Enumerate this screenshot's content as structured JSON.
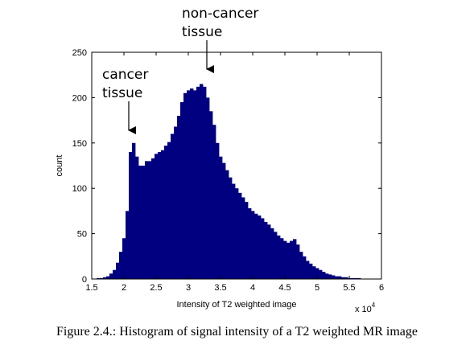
{
  "chart_data": {
    "type": "bar",
    "style": "histogram",
    "bar_color": "#000080",
    "xlabel": "Intensity of T2 weighted image",
    "ylabel": "count",
    "x_exponent_label": "x 10",
    "x_exponent_power": "4",
    "xlim": [
      1.5,
      6.0
    ],
    "ylim": [
      0,
      250
    ],
    "x_ticks": [
      "1.5",
      "2",
      "2.5",
      "3",
      "3.5",
      "4",
      "4.5",
      "5",
      "5.5",
      "6"
    ],
    "y_ticks": [
      "0",
      "50",
      "100",
      "150",
      "200",
      "250"
    ],
    "x": [
      1.55,
      1.6,
      1.65,
      1.7,
      1.75,
      1.8,
      1.85,
      1.9,
      1.95,
      2.0,
      2.05,
      2.1,
      2.15,
      2.2,
      2.25,
      2.3,
      2.35,
      2.4,
      2.45,
      2.5,
      2.55,
      2.6,
      2.65,
      2.7,
      2.75,
      2.8,
      2.85,
      2.9,
      2.95,
      3.0,
      3.05,
      3.1,
      3.15,
      3.2,
      3.25,
      3.3,
      3.35,
      3.4,
      3.45,
      3.5,
      3.55,
      3.6,
      3.65,
      3.7,
      3.75,
      3.8,
      3.85,
      3.9,
      3.95,
      4.0,
      4.05,
      4.1,
      4.15,
      4.2,
      4.25,
      4.3,
      4.35,
      4.4,
      4.45,
      4.5,
      4.55,
      4.6,
      4.65,
      4.7,
      4.75,
      4.8,
      4.85,
      4.9,
      4.95,
      5.0,
      5.05,
      5.1,
      5.15,
      5.2,
      5.25,
      5.3,
      5.35,
      5.4,
      5.45,
      5.5,
      5.55,
      5.6,
      5.65,
      5.7,
      5.75,
      5.8,
      5.85,
      5.9,
      5.95
    ],
    "values": [
      0,
      1,
      1,
      2,
      3,
      6,
      10,
      18,
      30,
      45,
      75,
      140,
      150,
      135,
      125,
      125,
      130,
      130,
      133,
      138,
      140,
      142,
      147,
      151,
      160,
      168,
      180,
      195,
      205,
      208,
      210,
      208,
      212,
      215,
      212,
      200,
      185,
      170,
      150,
      135,
      128,
      120,
      112,
      105,
      100,
      95,
      90,
      85,
      78,
      75,
      72,
      70,
      67,
      63,
      60,
      56,
      52,
      48,
      45,
      42,
      40,
      42,
      44,
      38,
      30,
      25,
      20,
      17,
      14,
      12,
      10,
      8,
      6,
      5,
      4,
      3,
      3,
      2,
      2,
      1,
      1,
      1,
      1,
      0,
      0,
      0,
      0,
      0,
      0
    ],
    "annotations": [
      {
        "lines": [
          "non-cancer",
          "tissue"
        ],
        "target_x": 3.3,
        "target_y": 230
      },
      {
        "lines": [
          "cancer",
          "tissue"
        ],
        "target_x": 2.1,
        "target_y": 157
      }
    ]
  },
  "caption": "Figure 2.4.: Histogram of signal intensity of a T2 weighted MR image"
}
